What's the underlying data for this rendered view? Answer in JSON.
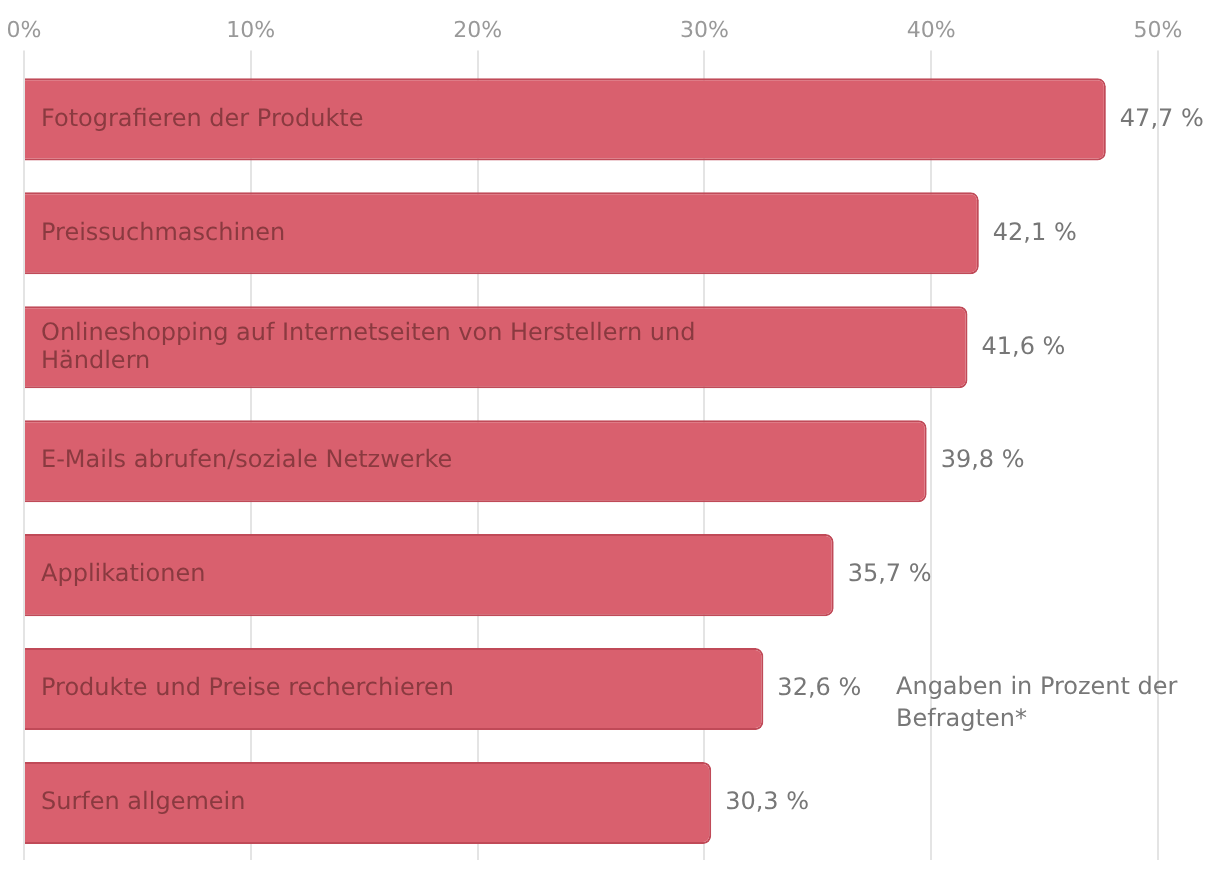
{
  "chart_data": {
    "type": "bar",
    "orientation": "horizontal",
    "categories": [
      "Fotografieren der Produkte",
      "Preissuchmaschinen",
      "Onlineshopping auf Internetseiten von Herstellern und Händlern",
      "E-Mails abrufen/soziale Netzwerke",
      "Applikationen",
      "Produkte und Preise recherchieren",
      "Surfen allgemein"
    ],
    "values": [
      47.7,
      42.1,
      41.6,
      39.8,
      35.7,
      32.6,
      30.3
    ],
    "value_labels": [
      "47,7 %",
      "42,1 %",
      "41,6 %",
      "39,8 %",
      "35,7 %",
      "32,6 %",
      "30,3 %"
    ],
    "color": "#d9606e",
    "xlim": [
      0,
      50
    ],
    "xticks": [
      {
        "value": 0,
        "label": "0%"
      },
      {
        "value": 10,
        "label": "10%"
      },
      {
        "value": 20,
        "label": "20%"
      },
      {
        "value": 30,
        "label": "30%"
      },
      {
        "value": 40,
        "label": "40%"
      },
      {
        "value": 50,
        "label": "50%"
      }
    ],
    "grid": "x",
    "legend": false,
    "annotations": [
      "Angaben in Prozent der Befragten*"
    ]
  }
}
